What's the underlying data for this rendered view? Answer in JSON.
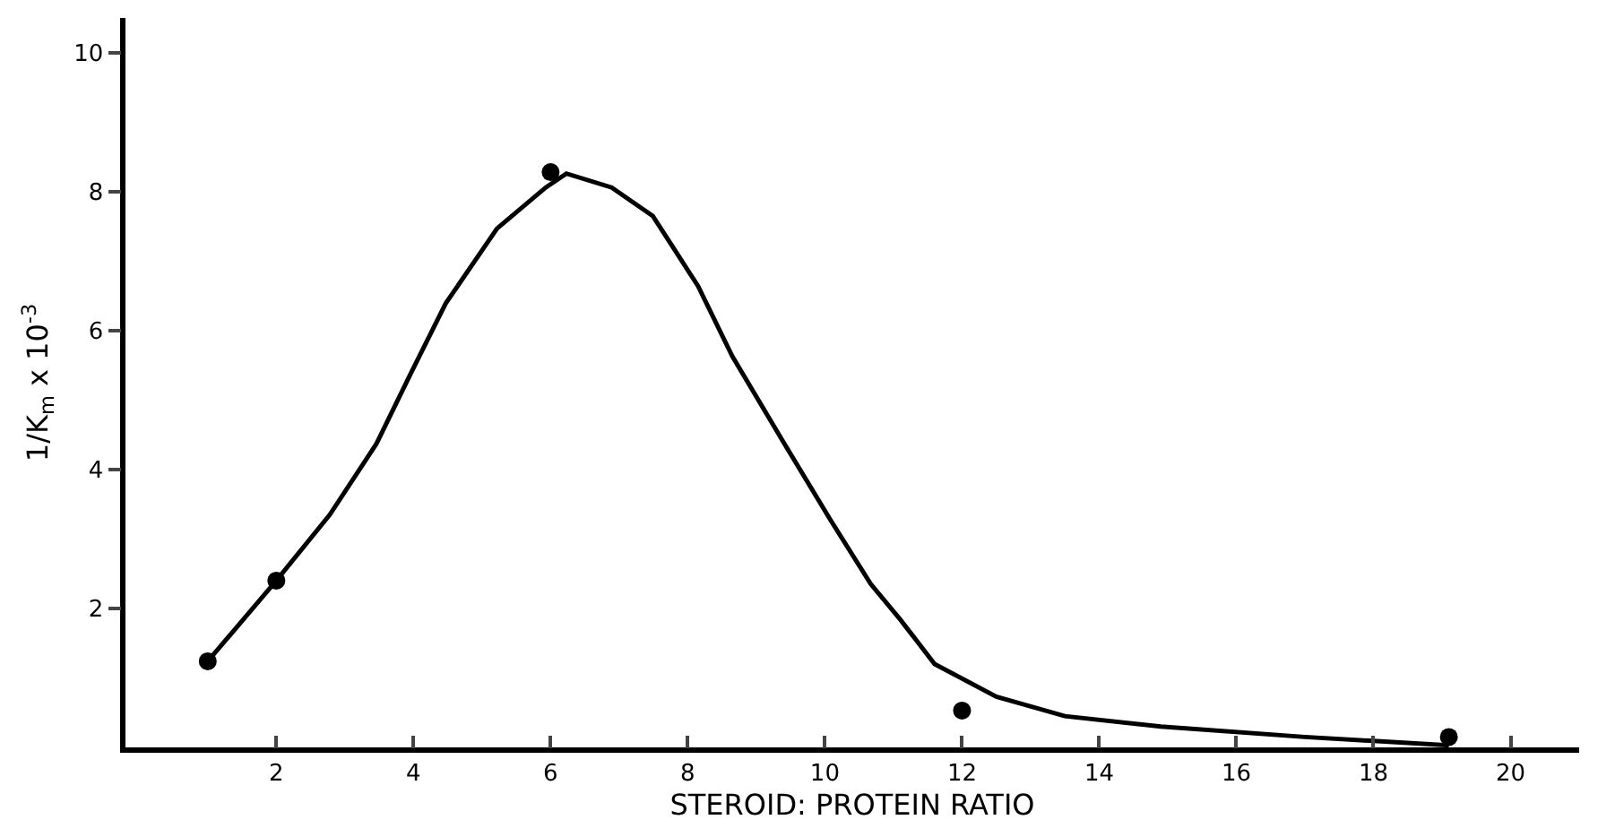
{
  "chart_data": {
    "type": "line",
    "xlabel": "STEROID: PROTEIN RATIO",
    "ylabel": "1/K$_{m}$ x 10$^{-3}$",
    "xlim": [
      -0.2,
      21
    ],
    "xticks": [
      2,
      4,
      6,
      8,
      10,
      12,
      14,
      16,
      18,
      20
    ],
    "ylim": [
      0,
      10.5
    ],
    "yticks": [
      2,
      4,
      6,
      8,
      10
    ],
    "grid": false,
    "series": [
      {
        "type": "line",
        "color": "#000000",
        "marker": "none",
        "line_style": "solid",
        "x": [
          1,
          2,
          2.78,
          3.46,
          3.96,
          4.47,
          5.22,
          5.93,
          6.23,
          6.89,
          7.49,
          8.15,
          8.65,
          9.41,
          10.09,
          10.67,
          11.1,
          11.6,
          12.5,
          13.5,
          14.9,
          17.0,
          19.1
        ],
        "values": [
          1.24,
          2.4,
          3.35,
          4.37,
          5.38,
          6.39,
          7.47,
          8.06,
          8.26,
          8.06,
          7.65,
          6.64,
          5.63,
          4.37,
          3.26,
          2.35,
          1.84,
          1.2,
          0.73,
          0.45,
          0.3,
          0.15,
          0.03
        ]
      },
      {
        "type": "scatter",
        "color": "#000000",
        "marker": "circle",
        "x": [
          1,
          2,
          6,
          12,
          19.1
        ],
        "values": [
          1.24,
          2.4,
          8.28,
          0.53,
          0.15
        ]
      }
    ]
  }
}
